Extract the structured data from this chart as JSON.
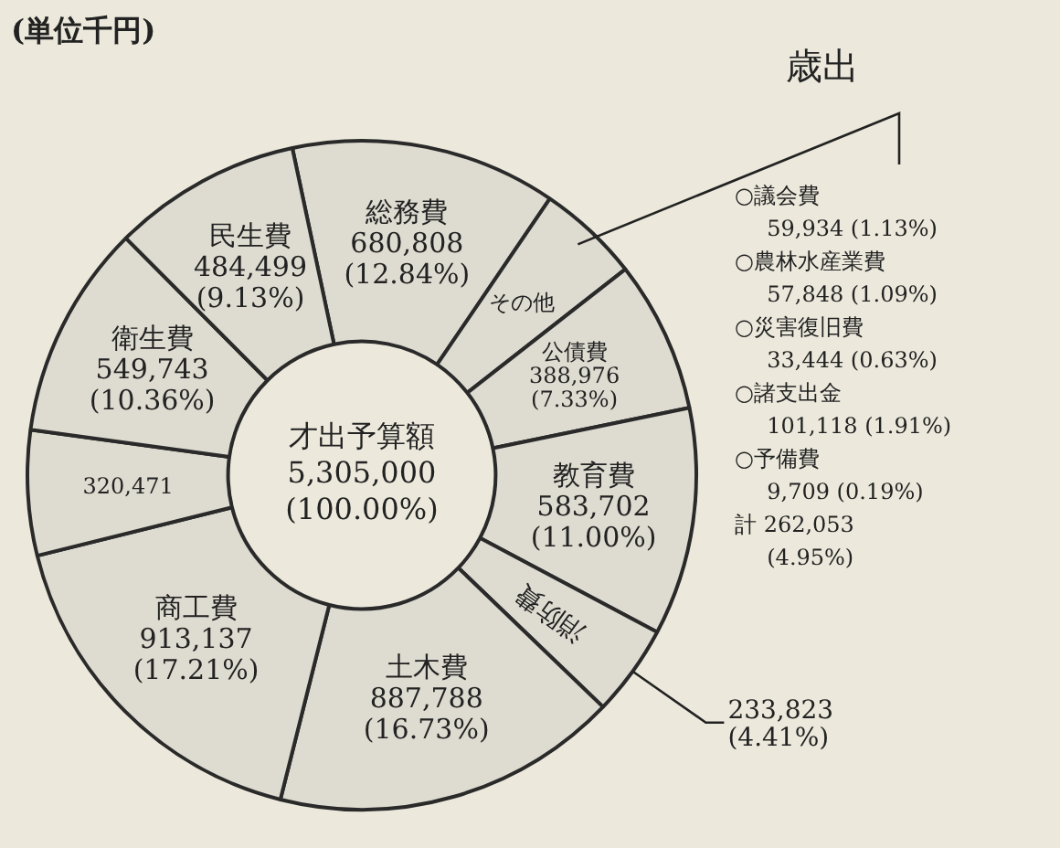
{
  "chart_data": {
    "type": "donut",
    "title": "歳出",
    "categories": [
      "総務費",
      "その他",
      "公債費",
      "教育費",
      "消防費",
      "土木費",
      "商工費",
      null,
      "衛生費",
      "民生費"
    ],
    "values": [
      680808,
      262053,
      388976,
      583702,
      233823,
      887788,
      913137,
      320471,
      549743,
      484499
    ],
    "value_labels": [
      "680,808 (12.84%)",
      null,
      "388,976 (7.33%)",
      "583,702 (11.00%)",
      "233,823 (4.41%)",
      "887,788 (16.73%)",
      "913,137 (17.21%)",
      "320,471",
      "549,743 (10.36%)",
      "484,499 (9.13%)"
    ],
    "colors": [
      "#dedbd0",
      "#dedbd0",
      "#dedbd0",
      "#dedbd0",
      "#dedbd0",
      "#dedbd0",
      "#dedbd0",
      "#dedbd0",
      "#dedbd0",
      "#dedbd0"
    ],
    "annotations": [
      "才出予算額\n5,305,000\n(100.00%)",
      "○議会費\n  59,934 (1.13%)\n○農林水産業費\n  57,848 (1.09%)\n○災害復旧費\n  33,444 (0.63%)\n○諸支出金\n  101,118 (1.91%)\n○予備費\n  9,709 (0.19%)\n計 262,053\n  (4.95%)",
      "(単位千円)"
    ],
    "legend": false
  }
}
